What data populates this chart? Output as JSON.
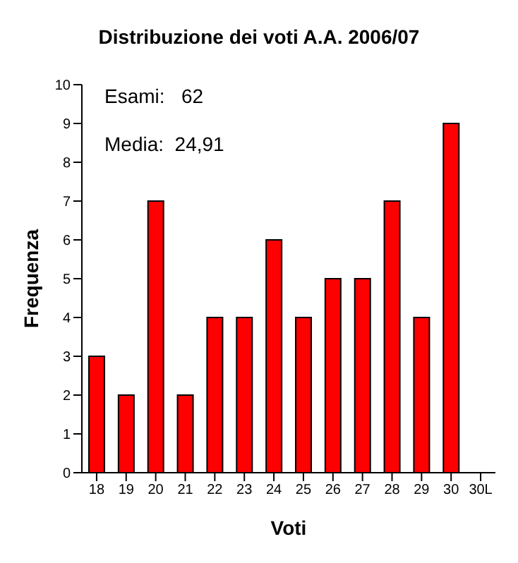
{
  "chart_data": {
    "type": "bar",
    "title": "Distribuzione dei voti A.A. 2006/07",
    "xlabel": "Voti",
    "ylabel": "Frequenza",
    "categories": [
      "18",
      "19",
      "20",
      "21",
      "22",
      "23",
      "24",
      "25",
      "26",
      "27",
      "28",
      "29",
      "30",
      "30L"
    ],
    "values": [
      3,
      2,
      7,
      2,
      4,
      4,
      6,
      4,
      5,
      5,
      7,
      4,
      9,
      0
    ],
    "color": "#ff0000",
    "ylim": [
      0,
      10
    ],
    "yticks": [
      0,
      1,
      2,
      3,
      4,
      5,
      6,
      7,
      8,
      9,
      10
    ],
    "annotations": [
      "Esami:   62",
      "Media:  24,91"
    ]
  }
}
